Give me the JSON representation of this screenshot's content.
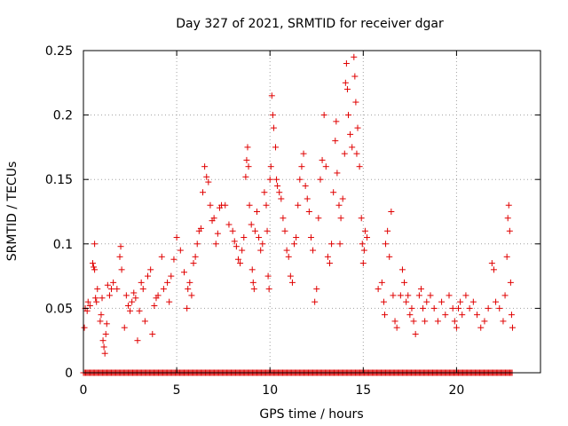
{
  "chart_data": {
    "type": "scatter",
    "title": "Day 327 of 2021, SRMTID for receiver dgar",
    "xlabel": "GPS time / hours",
    "ylabel": "SRMTID / TECUs",
    "xlim": [
      0,
      24.5
    ],
    "ylim": [
      0,
      0.25
    ],
    "x_ticks": [
      0,
      5,
      10,
      15,
      20
    ],
    "x_tick_labels": [
      "0",
      "5",
      "10",
      "15",
      "20"
    ],
    "y_ticks": [
      0,
      0.05,
      0.1,
      0.15,
      0.2,
      0.25
    ],
    "y_tick_labels": [
      "0",
      "0.05",
      "0.1",
      "0.15",
      "0.2",
      "0.25"
    ],
    "grid": true,
    "marker": "+",
    "marker_color": "#e00000",
    "series": [
      {
        "name": "SRMTID",
        "points": [
          [
            0.05,
            0.035
          ],
          [
            0.1,
            0.05
          ],
          [
            0.2,
            0.048
          ],
          [
            0.25,
            0.055
          ],
          [
            0.35,
            0.052
          ],
          [
            0.5,
            0.085
          ],
          [
            0.55,
            0.082
          ],
          [
            0.6,
            0.08
          ],
          [
            0.6,
            0.1
          ],
          [
            0.65,
            0.058
          ],
          [
            0.7,
            0.055
          ],
          [
            0.75,
            0.065
          ],
          [
            0.9,
            0.04
          ],
          [
            0.95,
            0.045
          ],
          [
            1.0,
            0.058
          ],
          [
            1.05,
            0.025
          ],
          [
            1.1,
            0.02
          ],
          [
            1.15,
            0.015
          ],
          [
            1.2,
            0.03
          ],
          [
            1.25,
            0.038
          ],
          [
            1.3,
            0.068
          ],
          [
            1.4,
            0.06
          ],
          [
            1.5,
            0.065
          ],
          [
            1.6,
            0.07
          ],
          [
            1.8,
            0.065
          ],
          [
            1.95,
            0.09
          ],
          [
            2.0,
            0.098
          ],
          [
            2.05,
            0.08
          ],
          [
            2.2,
            0.035
          ],
          [
            2.3,
            0.06
          ],
          [
            2.4,
            0.052
          ],
          [
            2.5,
            0.048
          ],
          [
            2.6,
            0.055
          ],
          [
            2.7,
            0.062
          ],
          [
            2.8,
            0.058
          ],
          [
            2.9,
            0.025
          ],
          [
            3.0,
            0.048
          ],
          [
            3.1,
            0.07
          ],
          [
            3.2,
            0.065
          ],
          [
            3.3,
            0.04
          ],
          [
            3.45,
            0.075
          ],
          [
            3.6,
            0.08
          ],
          [
            3.7,
            0.03
          ],
          [
            3.8,
            0.052
          ],
          [
            3.9,
            0.058
          ],
          [
            4.0,
            0.06
          ],
          [
            4.2,
            0.09
          ],
          [
            4.3,
            0.065
          ],
          [
            4.5,
            0.07
          ],
          [
            4.6,
            0.055
          ],
          [
            4.7,
            0.075
          ],
          [
            4.85,
            0.088
          ],
          [
            5.0,
            0.105
          ],
          [
            5.2,
            0.095
          ],
          [
            5.4,
            0.078
          ],
          [
            5.55,
            0.05
          ],
          [
            5.6,
            0.065
          ],
          [
            5.7,
            0.07
          ],
          [
            5.8,
            0.06
          ],
          [
            5.9,
            0.085
          ],
          [
            6.0,
            0.09
          ],
          [
            6.1,
            0.1
          ],
          [
            6.2,
            0.11
          ],
          [
            6.3,
            0.112
          ],
          [
            6.4,
            0.14
          ],
          [
            6.5,
            0.16
          ],
          [
            6.6,
            0.152
          ],
          [
            6.7,
            0.148
          ],
          [
            6.8,
            0.13
          ],
          [
            6.9,
            0.118
          ],
          [
            7.0,
            0.12
          ],
          [
            7.1,
            0.1
          ],
          [
            7.2,
            0.108
          ],
          [
            7.3,
            0.128
          ],
          [
            7.4,
            0.13
          ],
          [
            7.6,
            0.13
          ],
          [
            7.8,
            0.115
          ],
          [
            8.0,
            0.11
          ],
          [
            8.1,
            0.102
          ],
          [
            8.2,
            0.098
          ],
          [
            8.3,
            0.088
          ],
          [
            8.4,
            0.085
          ],
          [
            8.5,
            0.095
          ],
          [
            8.6,
            0.105
          ],
          [
            8.7,
            0.152
          ],
          [
            8.75,
            0.165
          ],
          [
            8.8,
            0.175
          ],
          [
            8.85,
            0.16
          ],
          [
            8.9,
            0.13
          ],
          [
            9.0,
            0.115
          ],
          [
            9.05,
            0.08
          ],
          [
            9.1,
            0.07
          ],
          [
            9.15,
            0.065
          ],
          [
            9.2,
            0.11
          ],
          [
            9.3,
            0.125
          ],
          [
            9.4,
            0.105
          ],
          [
            9.5,
            0.095
          ],
          [
            9.6,
            0.1
          ],
          [
            9.7,
            0.14
          ],
          [
            9.8,
            0.13
          ],
          [
            9.85,
            0.11
          ],
          [
            9.9,
            0.075
          ],
          [
            9.95,
            0.065
          ],
          [
            10.0,
            0.15
          ],
          [
            10.05,
            0.16
          ],
          [
            10.1,
            0.215
          ],
          [
            10.15,
            0.2
          ],
          [
            10.2,
            0.19
          ],
          [
            10.3,
            0.175
          ],
          [
            10.35,
            0.15
          ],
          [
            10.4,
            0.145
          ],
          [
            10.5,
            0.14
          ],
          [
            10.6,
            0.135
          ],
          [
            10.7,
            0.12
          ],
          [
            10.8,
            0.11
          ],
          [
            10.9,
            0.095
          ],
          [
            11.0,
            0.09
          ],
          [
            11.1,
            0.075
          ],
          [
            11.2,
            0.07
          ],
          [
            11.3,
            0.1
          ],
          [
            11.4,
            0.105
          ],
          [
            11.5,
            0.13
          ],
          [
            11.6,
            0.15
          ],
          [
            11.7,
            0.16
          ],
          [
            11.8,
            0.17
          ],
          [
            11.9,
            0.145
          ],
          [
            12.0,
            0.135
          ],
          [
            12.1,
            0.125
          ],
          [
            12.2,
            0.105
          ],
          [
            12.3,
            0.095
          ],
          [
            12.4,
            0.055
          ],
          [
            12.5,
            0.065
          ],
          [
            12.6,
            0.12
          ],
          [
            12.7,
            0.15
          ],
          [
            12.8,
            0.165
          ],
          [
            12.9,
            0.2
          ],
          [
            13.0,
            0.16
          ],
          [
            13.1,
            0.09
          ],
          [
            13.2,
            0.085
          ],
          [
            13.3,
            0.1
          ],
          [
            13.4,
            0.14
          ],
          [
            13.5,
            0.18
          ],
          [
            13.55,
            0.195
          ],
          [
            13.6,
            0.155
          ],
          [
            13.7,
            0.13
          ],
          [
            13.75,
            0.1
          ],
          [
            13.8,
            0.12
          ],
          [
            13.9,
            0.135
          ],
          [
            14.0,
            0.17
          ],
          [
            14.05,
            0.225
          ],
          [
            14.1,
            0.24
          ],
          [
            14.15,
            0.22
          ],
          [
            14.2,
            0.2
          ],
          [
            14.3,
            0.185
          ],
          [
            14.4,
            0.175
          ],
          [
            14.5,
            0.245
          ],
          [
            14.55,
            0.23
          ],
          [
            14.6,
            0.21
          ],
          [
            14.65,
            0.17
          ],
          [
            14.7,
            0.19
          ],
          [
            14.8,
            0.16
          ],
          [
            14.9,
            0.12
          ],
          [
            14.95,
            0.1
          ],
          [
            15.0,
            0.085
          ],
          [
            15.05,
            0.095
          ],
          [
            15.1,
            0.11
          ],
          [
            15.2,
            0.105
          ],
          [
            15.8,
            0.065
          ],
          [
            16.0,
            0.07
          ],
          [
            16.1,
            0.055
          ],
          [
            16.15,
            0.045
          ],
          [
            16.2,
            0.1
          ],
          [
            16.3,
            0.11
          ],
          [
            16.4,
            0.09
          ],
          [
            16.5,
            0.125
          ],
          [
            16.6,
            0.06
          ],
          [
            16.7,
            0.04
          ],
          [
            16.8,
            0.035
          ],
          [
            17.0,
            0.06
          ],
          [
            17.1,
            0.08
          ],
          [
            17.2,
            0.07
          ],
          [
            17.3,
            0.055
          ],
          [
            17.4,
            0.06
          ],
          [
            17.5,
            0.045
          ],
          [
            17.6,
            0.05
          ],
          [
            17.7,
            0.04
          ],
          [
            17.8,
            0.03
          ],
          [
            18.0,
            0.06
          ],
          [
            18.1,
            0.065
          ],
          [
            18.2,
            0.05
          ],
          [
            18.3,
            0.04
          ],
          [
            18.4,
            0.055
          ],
          [
            18.6,
            0.06
          ],
          [
            18.8,
            0.05
          ],
          [
            19.0,
            0.04
          ],
          [
            19.2,
            0.055
          ],
          [
            19.4,
            0.045
          ],
          [
            19.6,
            0.06
          ],
          [
            19.8,
            0.05
          ],
          [
            19.9,
            0.04
          ],
          [
            20.0,
            0.035
          ],
          [
            20.1,
            0.05
          ],
          [
            20.2,
            0.055
          ],
          [
            20.3,
            0.045
          ],
          [
            20.5,
            0.06
          ],
          [
            20.7,
            0.05
          ],
          [
            20.9,
            0.055
          ],
          [
            21.1,
            0.045
          ],
          [
            21.3,
            0.035
          ],
          [
            21.5,
            0.04
          ],
          [
            21.7,
            0.05
          ],
          [
            21.9,
            0.085
          ],
          [
            22.0,
            0.08
          ],
          [
            22.1,
            0.055
          ],
          [
            22.3,
            0.05
          ],
          [
            22.5,
            0.04
          ],
          [
            22.6,
            0.06
          ],
          [
            22.7,
            0.09
          ],
          [
            22.75,
            0.12
          ],
          [
            22.8,
            0.13
          ],
          [
            22.85,
            0.11
          ],
          [
            22.9,
            0.07
          ],
          [
            22.95,
            0.045
          ],
          [
            23.0,
            0.035
          ]
        ],
        "zero_band_x": [
          0,
          23
        ]
      }
    ]
  }
}
